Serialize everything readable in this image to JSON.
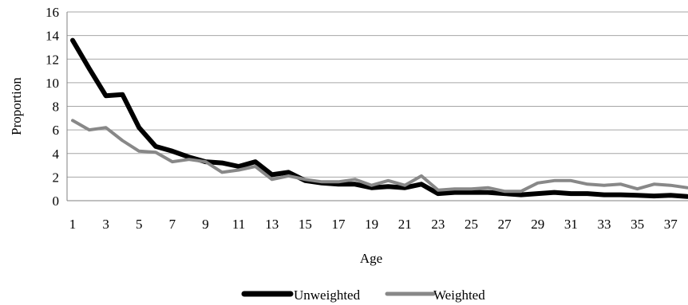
{
  "chart_data": {
    "type": "line",
    "title": "",
    "xlabel": "Age",
    "ylabel": "Proportion",
    "ylim": [
      0,
      16
    ],
    "yticks": [
      0,
      2,
      4,
      6,
      8,
      10,
      12,
      14,
      16
    ],
    "xticks": [
      1,
      3,
      5,
      7,
      9,
      11,
      13,
      15,
      17,
      19,
      21,
      23,
      25,
      27,
      29,
      31,
      33,
      35,
      37
    ],
    "xlim": [
      1,
      38
    ],
    "grid": true,
    "legend": "bottom",
    "x": [
      1,
      2,
      3,
      4,
      5,
      6,
      7,
      8,
      9,
      10,
      11,
      12,
      13,
      14,
      15,
      16,
      17,
      18,
      19,
      20,
      21,
      22,
      23,
      24,
      25,
      26,
      27,
      28,
      29,
      30,
      31,
      32,
      33,
      34,
      35,
      36,
      37,
      38
    ],
    "series": [
      {
        "name": "Unweighted",
        "color": "#000000",
        "values": [
          13.6,
          11.2,
          8.9,
          9.0,
          6.2,
          4.6,
          4.2,
          3.7,
          3.3,
          3.2,
          2.9,
          3.3,
          2.2,
          2.4,
          1.7,
          1.5,
          1.4,
          1.4,
          1.1,
          1.2,
          1.1,
          1.4,
          0.6,
          0.7,
          0.7,
          0.7,
          0.6,
          0.5,
          0.6,
          0.7,
          0.6,
          0.6,
          0.5,
          0.5,
          0.45,
          0.4,
          0.45,
          0.35
        ]
      },
      {
        "name": "Weighted",
        "color": "#888888",
        "values": [
          6.8,
          6.0,
          6.2,
          5.1,
          4.2,
          4.1,
          3.3,
          3.5,
          3.3,
          2.4,
          2.6,
          2.9,
          1.8,
          2.1,
          1.8,
          1.6,
          1.6,
          1.8,
          1.3,
          1.7,
          1.3,
          2.1,
          0.9,
          1.0,
          1.0,
          1.1,
          0.8,
          0.8,
          1.5,
          1.7,
          1.7,
          1.4,
          1.3,
          1.4,
          1.0,
          1.4,
          1.3,
          1.1
        ]
      }
    ]
  }
}
